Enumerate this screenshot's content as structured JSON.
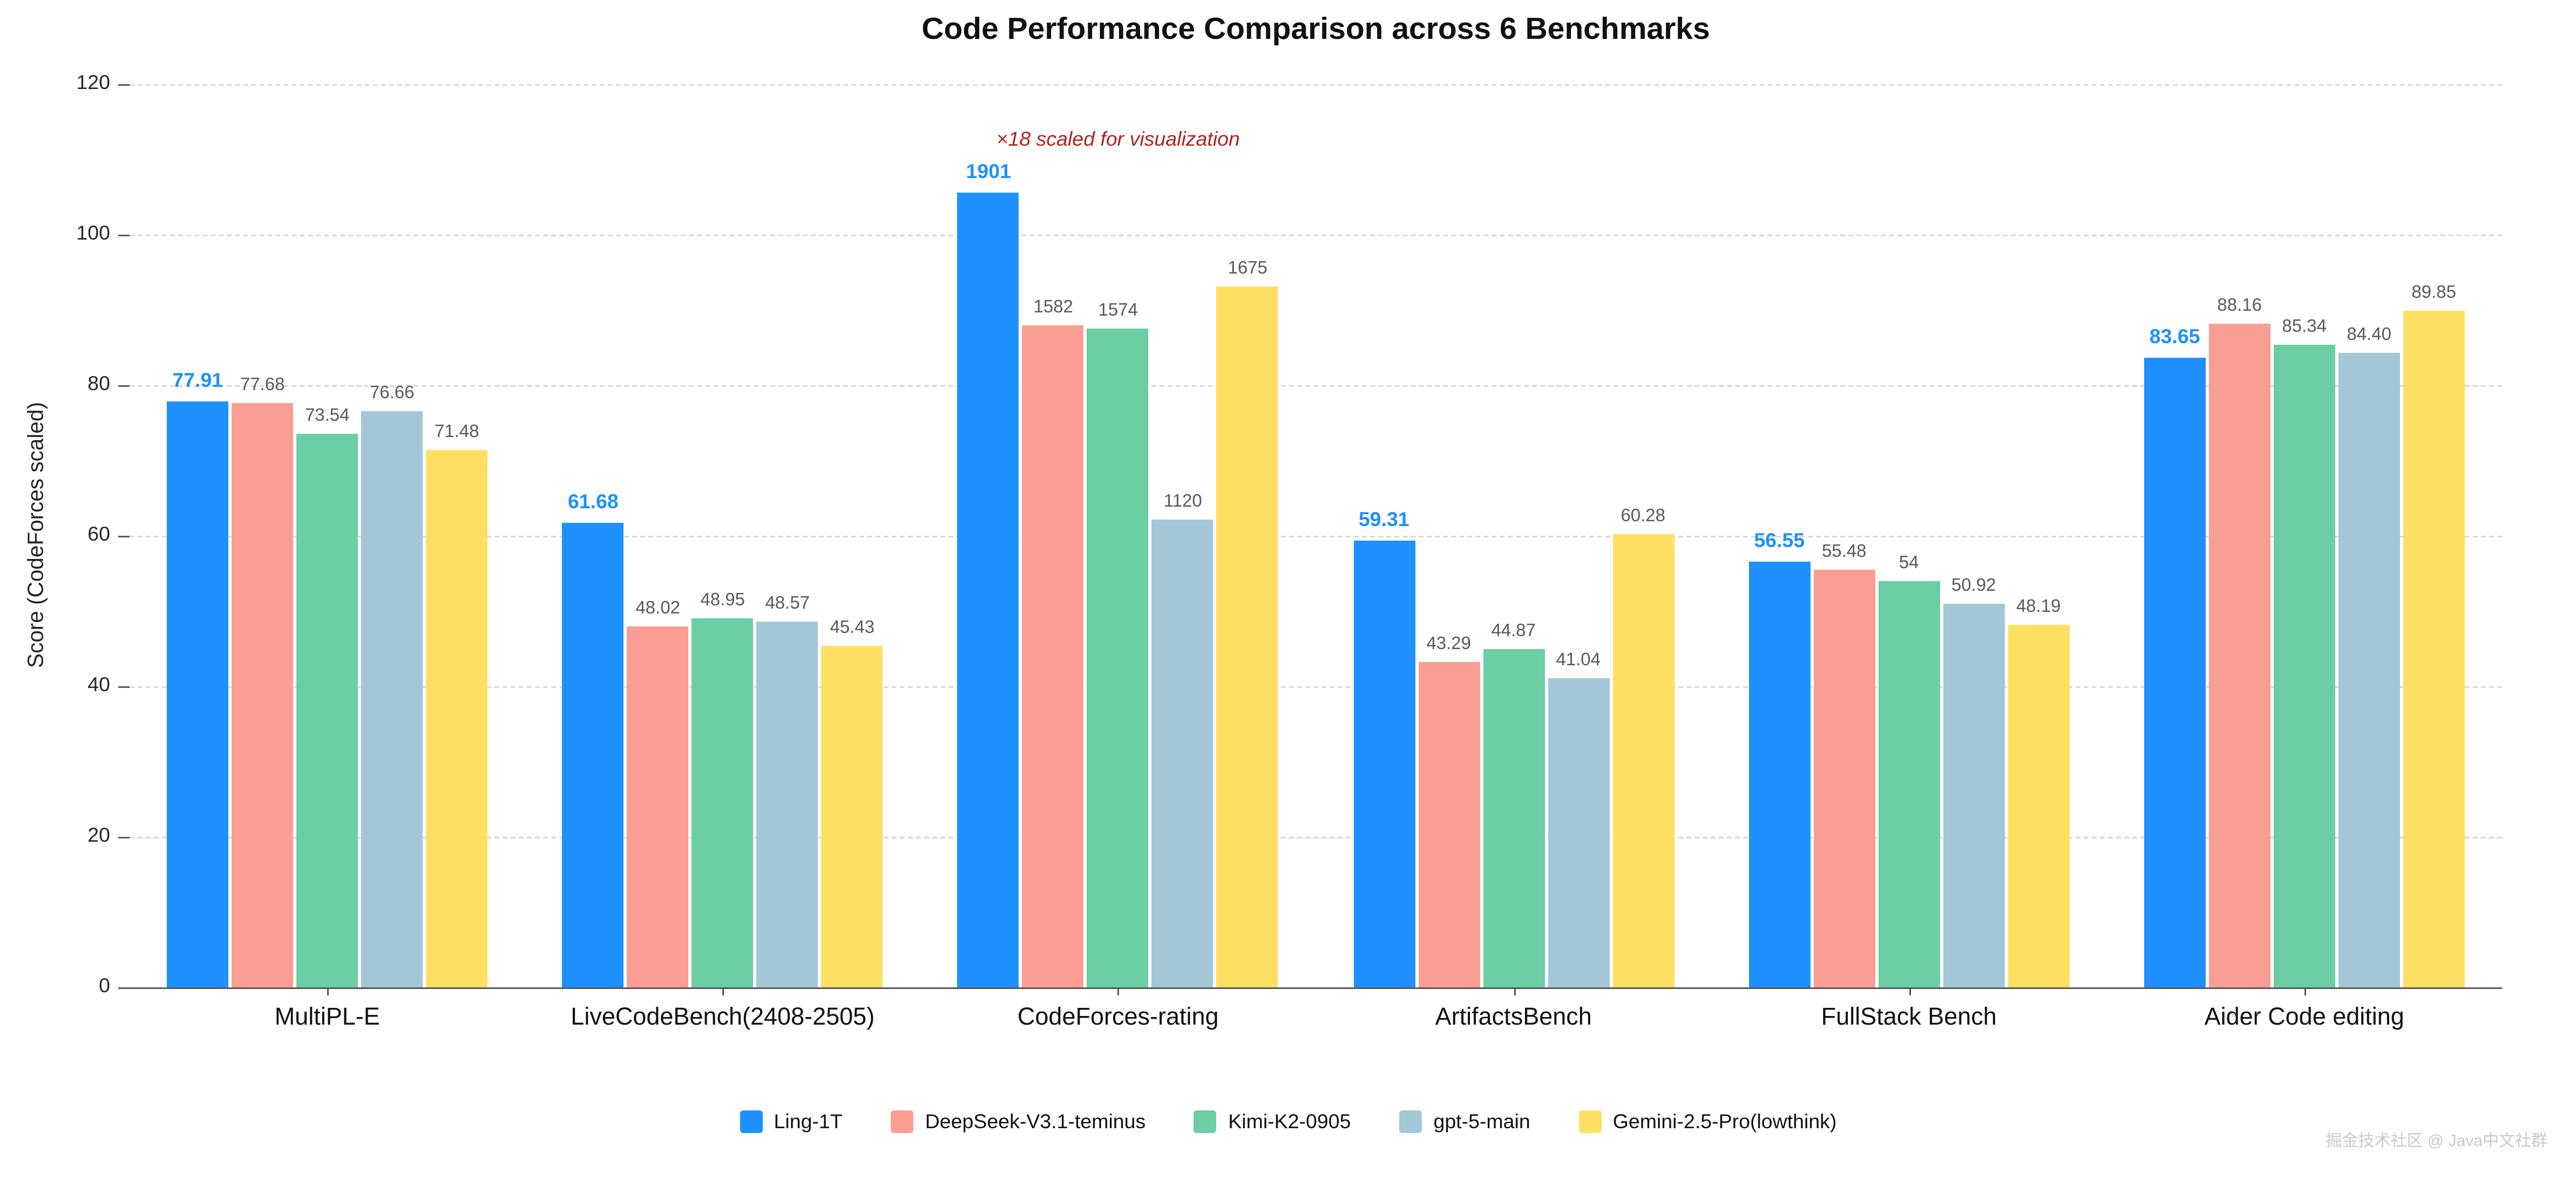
{
  "title": "Code Performance Comparison across 6 Benchmarks",
  "watermark": "掘金技术社区 @ Java中文社群",
  "chart_data": {
    "type": "bar",
    "title": "Code Performance Comparison across 6 Benchmarks",
    "xlabel": "",
    "ylabel": "Score (CodeForces scaled)",
    "ylim": [
      0,
      120
    ],
    "yticks": [
      0,
      20,
      40,
      60,
      80,
      100,
      120
    ],
    "grid": "horizontal dashed",
    "legend_position": "bottom center",
    "categories": [
      "MultiPL-E",
      "LiveCodeBench(2408-2505)",
      "CodeForces-rating",
      "ArtifactsBench",
      "FullStack Bench",
      "Aider Code editing"
    ],
    "scaled_category": "CodeForces-rating",
    "scale_factor": 18,
    "annotation": {
      "text": "×18 scaled for visualization",
      "color": "#B22222"
    },
    "value_label_color": "#595959",
    "series": [
      {
        "name": "Ling-1T",
        "color": "#1E90FF",
        "values": [
          77.91,
          61.68,
          1901,
          59.31,
          56.55,
          83.65
        ],
        "labels": [
          "77.91",
          "61.68",
          "1901",
          "59.31",
          "56.55",
          "83.65"
        ]
      },
      {
        "name": "DeepSeek-V3.1-teminus",
        "color": "#FA9E93",
        "values": [
          77.68,
          48.02,
          1582,
          43.29,
          55.48,
          88.16
        ],
        "labels": [
          "77.68",
          "48.02",
          "1582",
          "43.29",
          "55.48",
          "88.16"
        ]
      },
      {
        "name": "Kimi-K2-0905",
        "color": "#6BCEA4",
        "values": [
          73.54,
          48.95,
          1574,
          44.87,
          54,
          85.34
        ],
        "labels": [
          "73.54",
          "48.95",
          "1574",
          "44.87",
          "54",
          "85.34"
        ]
      },
      {
        "name": "gpt-5-main",
        "color": "#A3C7D6",
        "values": [
          76.66,
          48.57,
          1120,
          41.04,
          50.92,
          84.4
        ],
        "labels": [
          "76.66",
          "48.57",
          "1120",
          "41.04",
          "50.92",
          "84.40"
        ]
      },
      {
        "name": "Gemini-2.5-Pro(lowthink)",
        "color": "#FFDF61",
        "values": [
          71.48,
          45.43,
          1675,
          60.28,
          48.19,
          89.85
        ],
        "labels": [
          "71.48",
          "45.43",
          "1675",
          "60.28",
          "48.19",
          "89.85"
        ]
      }
    ]
  }
}
